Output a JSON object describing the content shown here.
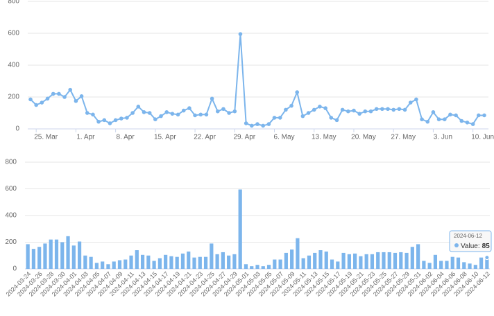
{
  "chart_data": [
    {
      "type": "line",
      "color": "#7cb5ec",
      "grid": true,
      "ylim": [
        0,
        800
      ],
      "yticks": [
        0,
        200,
        400,
        600,
        800
      ],
      "xticks": [
        {
          "value": 1,
          "label": "25. Mar"
        },
        {
          "value": 8,
          "label": "1. Apr"
        },
        {
          "value": 15,
          "label": "8. Apr"
        },
        {
          "value": 22,
          "label": "15. Apr"
        },
        {
          "value": 29,
          "label": "22. Apr"
        },
        {
          "value": 36,
          "label": "29. Apr"
        },
        {
          "value": 43,
          "label": "6. May"
        },
        {
          "value": 50,
          "label": "13. May"
        },
        {
          "value": 57,
          "label": "20. May"
        },
        {
          "value": 64,
          "label": "27. May"
        },
        {
          "value": 71,
          "label": "3. Jun"
        },
        {
          "value": 78,
          "label": "10. Jun"
        }
      ],
      "values": [
        185,
        150,
        165,
        190,
        220,
        220,
        200,
        245,
        175,
        205,
        100,
        90,
        45,
        55,
        35,
        55,
        65,
        70,
        100,
        140,
        105,
        100,
        60,
        80,
        105,
        95,
        90,
        115,
        130,
        85,
        90,
        90,
        190,
        110,
        125,
        100,
        110,
        595,
        35,
        20,
        30,
        20,
        30,
        70,
        70,
        120,
        145,
        230,
        80,
        100,
        120,
        140,
        130,
        70,
        55,
        120,
        110,
        115,
        95,
        110,
        110,
        125,
        125,
        125,
        120,
        125,
        120,
        165,
        185,
        60,
        45,
        105,
        60,
        60,
        90,
        85,
        50,
        40,
        30,
        85,
        85
      ]
    },
    {
      "type": "bar",
      "color": "#7cb5ec",
      "grid": true,
      "ylim": [
        0,
        800
      ],
      "yticks": [
        0,
        200,
        400,
        600,
        800
      ],
      "categories": [
        "2024-03-24",
        "2024-03-25",
        "2024-03-26",
        "2024-03-27",
        "2024-03-28",
        "2024-03-29",
        "2024-03-30",
        "2024-03-31",
        "2024-04-01",
        "2024-04-02",
        "2024-04-03",
        "2024-04-04",
        "2024-04-05",
        "2024-04-06",
        "2024-04-07",
        "2024-04-08",
        "2024-04-09",
        "2024-04-10",
        "2024-04-11",
        "2024-04-12",
        "2024-04-13",
        "2024-04-14",
        "2024-04-15",
        "2024-04-16",
        "2024-04-17",
        "2024-04-18",
        "2024-04-19",
        "2024-04-20",
        "2024-04-21",
        "2024-04-22",
        "2024-04-23",
        "2024-04-24",
        "2024-04-25",
        "2024-04-26",
        "2024-04-27",
        "2024-04-28",
        "2024-04-29",
        "2024-04-30",
        "2024-05-01",
        "2024-05-02",
        "2024-05-03",
        "2024-05-04",
        "2024-05-05",
        "2024-05-06",
        "2024-05-07",
        "2024-05-08",
        "2024-05-09",
        "2024-05-10",
        "2024-05-11",
        "2024-05-12",
        "2024-05-13",
        "2024-05-14",
        "2024-05-15",
        "2024-05-16",
        "2024-05-17",
        "2024-05-18",
        "2024-05-19",
        "2024-05-20",
        "2024-05-21",
        "2024-05-22",
        "2024-05-23",
        "2024-05-24",
        "2024-05-25",
        "2024-05-26",
        "2024-05-27",
        "2024-05-28",
        "2024-05-29",
        "2024-05-30",
        "2024-05-31",
        "2024-06-01",
        "2024-06-02",
        "2024-06-03",
        "2024-06-04",
        "2024-06-05",
        "2024-06-06",
        "2024-06-07",
        "2024-06-08",
        "2024-06-09",
        "2024-06-10",
        "2024-06-11",
        "2024-06-12"
      ],
      "values": [
        185,
        150,
        165,
        190,
        220,
        220,
        200,
        245,
        175,
        205,
        100,
        90,
        45,
        55,
        35,
        55,
        65,
        70,
        100,
        140,
        105,
        100,
        60,
        80,
        105,
        95,
        90,
        115,
        130,
        85,
        90,
        90,
        190,
        110,
        125,
        100,
        110,
        595,
        35,
        20,
        30,
        20,
        30,
        70,
        70,
        120,
        145,
        230,
        80,
        100,
        120,
        140,
        130,
        70,
        55,
        120,
        110,
        115,
        95,
        110,
        110,
        125,
        125,
        125,
        120,
        125,
        120,
        165,
        185,
        60,
        45,
        105,
        60,
        60,
        90,
        85,
        50,
        40,
        30,
        85,
        85
      ],
      "tooltip": {
        "label": "Value:"
      }
    }
  ]
}
